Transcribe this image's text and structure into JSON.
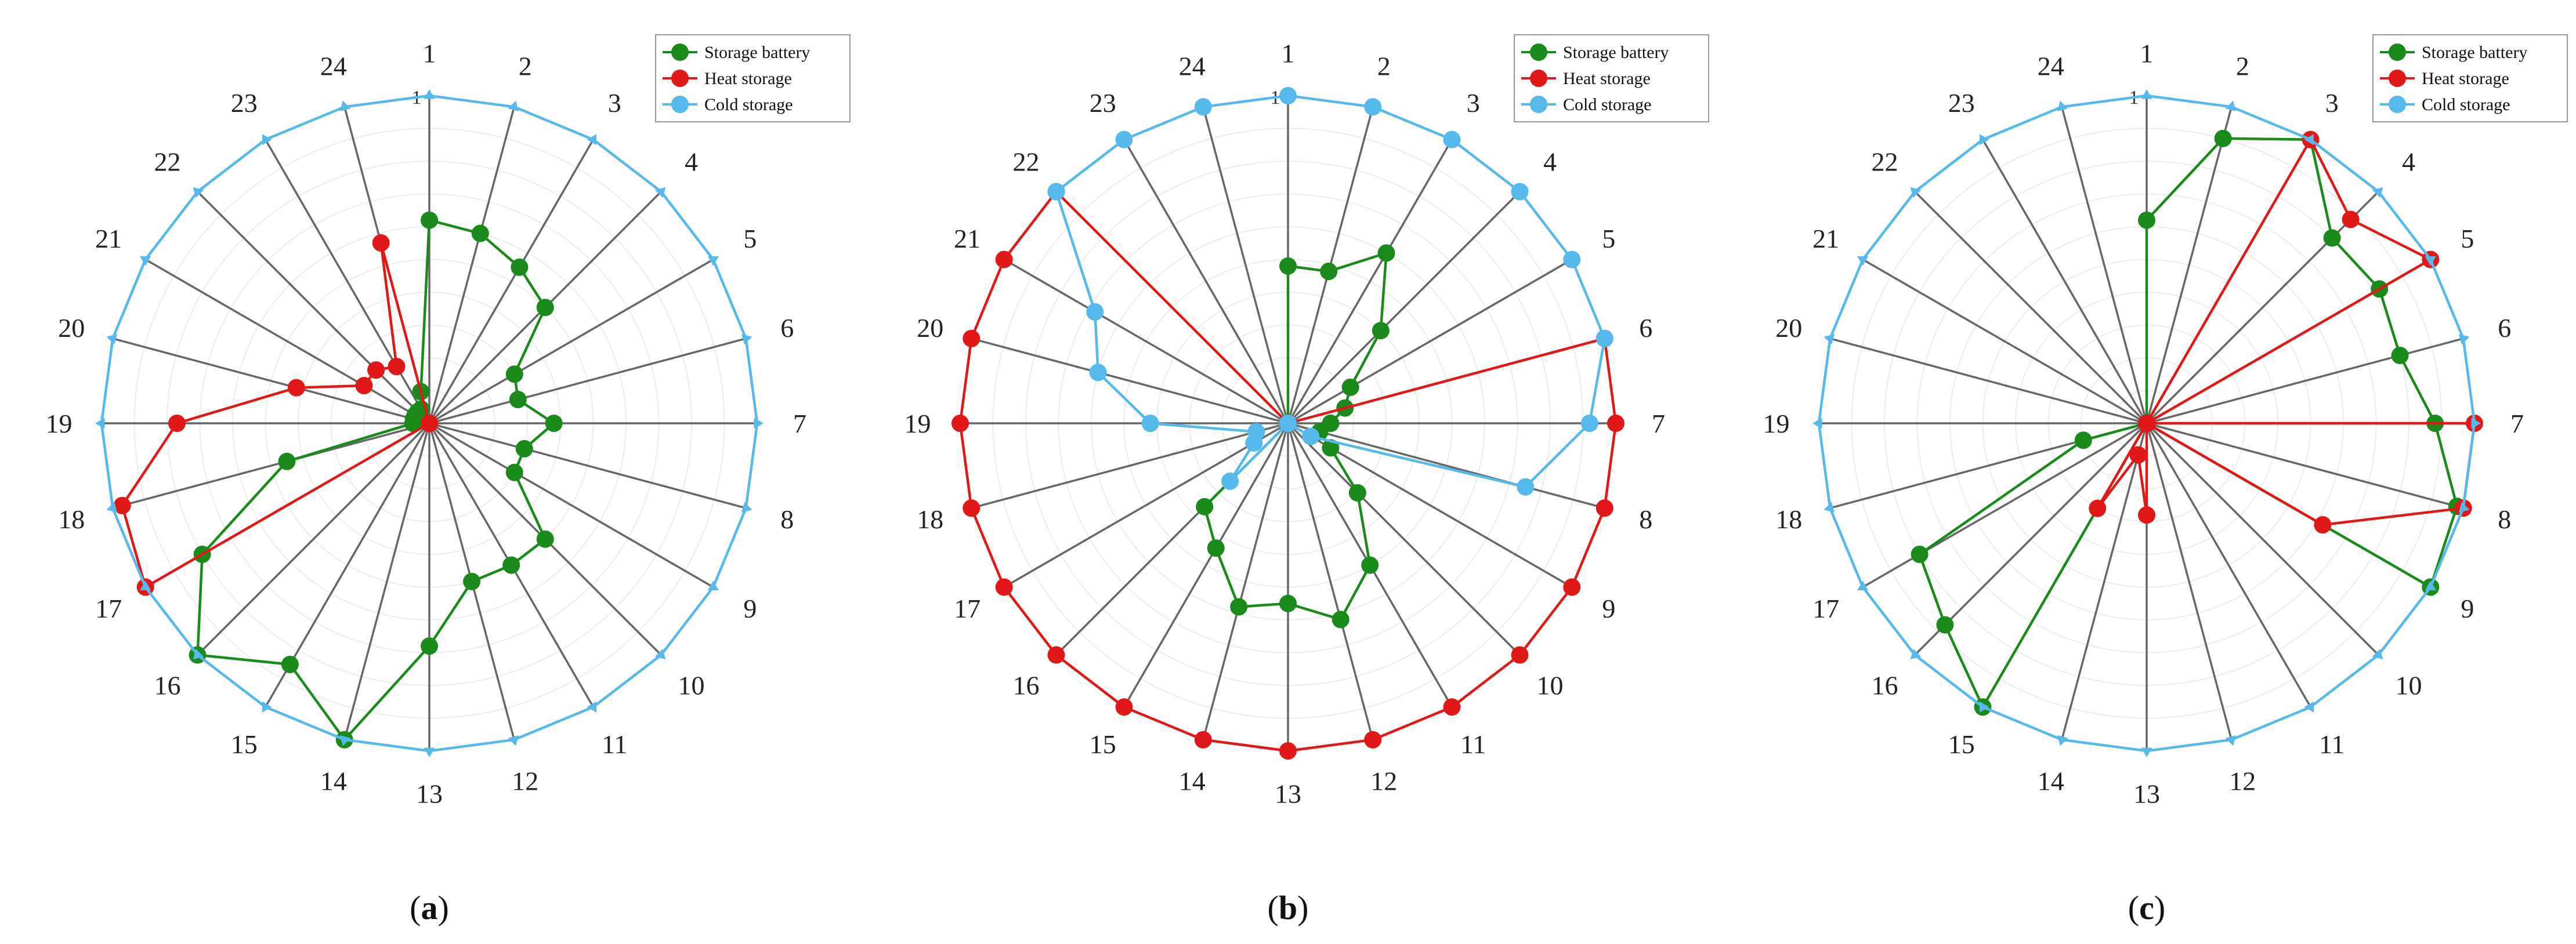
{
  "chart_data": [
    {
      "type": "radar",
      "caption_prefix": "(",
      "caption_letter": "a",
      "caption_suffix": ")",
      "angular_labels": [
        "1",
        "2",
        "3",
        "4",
        "5",
        "6",
        "7",
        "8",
        "9",
        "10",
        "11",
        "12",
        "13",
        "14",
        "15",
        "16",
        "17",
        "18",
        "19",
        "20",
        "21",
        "22",
        "23",
        "24"
      ],
      "radial_tick_label": "1",
      "rlim": [
        0,
        1
      ],
      "grid": true,
      "legend_position": "top-right",
      "series": [
        {
          "name": "Storage battery",
          "color": "#1a8a1a",
          "marker": "circle",
          "values": [
            0.62,
            0.6,
            0.55,
            0.5,
            0.3,
            0.28,
            0.38,
            0.3,
            0.3,
            0.5,
            0.5,
            0.5,
            0.68,
            1.0,
            0.85,
            1.0,
            0.8,
            0.45,
            0.05,
            0.05,
            0.05,
            0.05,
            0.05,
            0.1
          ]
        },
        {
          "name": "Heat storage",
          "color": "#e01818",
          "marker": "circle",
          "values": [
            0.0,
            0.0,
            0.0,
            0.0,
            0.0,
            0.0,
            0.0,
            0.0,
            0.0,
            0.0,
            0.0,
            0.0,
            0.0,
            0.0,
            0.0,
            0.0,
            1.0,
            0.97,
            0.77,
            0.42,
            0.23,
            0.23,
            0.2,
            0.57
          ]
        },
        {
          "name": "Cold storage",
          "color": "#55b9ec",
          "marker": "triangle",
          "values": [
            1,
            1,
            1,
            1,
            1,
            1,
            1,
            1,
            1,
            1,
            1,
            1,
            1,
            1,
            1,
            1,
            1,
            1,
            1,
            1,
            1,
            1,
            1,
            1
          ]
        }
      ]
    },
    {
      "type": "radar",
      "caption_prefix": "(",
      "caption_letter": "b",
      "caption_suffix": ")",
      "angular_labels": [
        "1",
        "2",
        "3",
        "4",
        "5",
        "6",
        "7",
        "8",
        "9",
        "10",
        "11",
        "12",
        "13",
        "14",
        "15",
        "16",
        "17",
        "18",
        "19",
        "20",
        "21",
        "22",
        "23",
        "24"
      ],
      "radial_tick_label": "1",
      "rlim": [
        0,
        1
      ],
      "grid": true,
      "legend_position": "top-right",
      "series": [
        {
          "name": "Storage battery",
          "color": "#1a8a1a",
          "marker": "circle",
          "values": [
            0.48,
            0.48,
            0.6,
            0.4,
            0.22,
            0.18,
            0.13,
            0.1,
            0.15,
            0.3,
            0.5,
            0.62,
            0.55,
            0.58,
            0.44,
            0.36,
            0.0,
            0.0,
            0.0,
            0.0,
            0.0,
            0.0,
            0.0,
            0.0
          ]
        },
        {
          "name": "Heat storage",
          "color": "#e01818",
          "marker": "circle",
          "values": [
            0.0,
            0.0,
            0.0,
            0.0,
            0.0,
            1.0,
            1.0,
            1.0,
            1.0,
            1.0,
            1.0,
            1.0,
            1.0,
            1.0,
            1.0,
            1.0,
            1.0,
            1.0,
            1.0,
            1.0,
            1.0,
            1.0,
            0.0,
            0.0
          ]
        },
        {
          "name": "Cold storage",
          "color": "#55b9ec",
          "marker": "circle",
          "values": [
            1.0,
            1.0,
            1.0,
            1.0,
            1.0,
            1.0,
            0.92,
            0.75,
            0.08,
            0.0,
            0.0,
            0.0,
            0.0,
            0.0,
            0.0,
            0.25,
            0.12,
            0.1,
            0.42,
            0.6,
            0.68,
            1.0,
            1.0,
            1.0
          ]
        }
      ]
    },
    {
      "type": "radar",
      "caption_prefix": "(",
      "caption_letter": "c",
      "caption_suffix": ")",
      "angular_labels": [
        "1",
        "2",
        "3",
        "4",
        "5",
        "6",
        "7",
        "8",
        "9",
        "10",
        "11",
        "12",
        "13",
        "14",
        "15",
        "16",
        "17",
        "18",
        "19",
        "20",
        "21",
        "22",
        "23",
        "24"
      ],
      "radial_tick_label": "1",
      "rlim": [
        0,
        1
      ],
      "grid": true,
      "legend_position": "top-right",
      "series": [
        {
          "name": "Storage battery",
          "color": "#1a8a1a",
          "marker": "circle",
          "values": [
            0.62,
            0.9,
            1.0,
            0.8,
            0.82,
            0.8,
            0.88,
            0.98,
            1.0,
            0.0,
            0.0,
            0.0,
            0.0,
            0.0,
            1.0,
            0.87,
            0.8,
            0.2,
            0.0,
            0.0,
            0.0,
            0.0,
            0.0,
            0.0
          ]
        },
        {
          "name": "Heat storage",
          "color": "#e01818",
          "marker": "circle",
          "values": [
            0.0,
            0.0,
            1.0,
            0.88,
            1.0,
            0.0,
            1.0,
            1.0,
            0.62,
            0.0,
            0.0,
            0.0,
            0.28,
            0.1,
            0.3,
            0.0,
            0.0,
            0.0,
            0.0,
            0.0,
            0.0,
            0.0,
            0.0,
            0.0
          ]
        },
        {
          "name": "Cold storage",
          "color": "#55b9ec",
          "marker": "triangle",
          "values": [
            1,
            1,
            1,
            1,
            1,
            1,
            1,
            1,
            1,
            1,
            1,
            1,
            1,
            1,
            1,
            1,
            1,
            1,
            1,
            1,
            1,
            1,
            1,
            1
          ]
        }
      ]
    }
  ]
}
